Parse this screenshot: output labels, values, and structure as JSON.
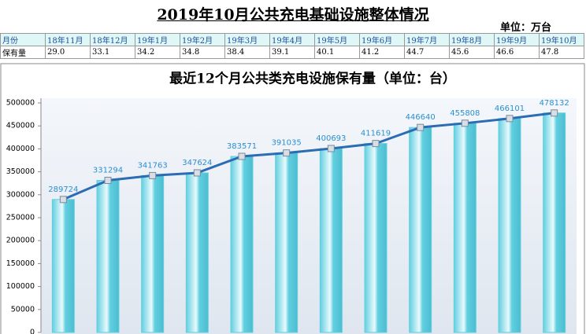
{
  "header": {
    "title": "2019年10月公共充电基础设施整体情况",
    "unit": "单位：万台"
  },
  "table": {
    "rows": [
      [
        "月份",
        "18年11月",
        "18年12月",
        "19年1月",
        "19年2月",
        "19年3月",
        "19年4月",
        "19年5月",
        "19年6月",
        "19年7月",
        "19年8月",
        "19年9月",
        "19年10月"
      ],
      [
        "保有量",
        "29.0",
        "33.1",
        "34.2",
        "34.8",
        "38.4",
        "39.1",
        "40.1",
        "41.2",
        "44.7",
        "45.6",
        "46.6",
        "47.8"
      ]
    ]
  },
  "chart_data": {
    "type": "bar",
    "title": "最近12个月公共类充电设施保有量（单位：台）",
    "values": [
      289724,
      331294,
      341763,
      347624,
      383571,
      391035,
      400693,
      411619,
      446640,
      455808,
      466101,
      478132
    ],
    "color": "#62cfe0",
    "line": true,
    "line_color": "#2b6cb3",
    "label_color": "#2b8fd0",
    "ylim": [
      0,
      500000
    ],
    "yticks": [
      0,
      50000,
      100000,
      150000,
      200000,
      250000,
      300000,
      350000,
      400000,
      450000,
      500000
    ]
  }
}
